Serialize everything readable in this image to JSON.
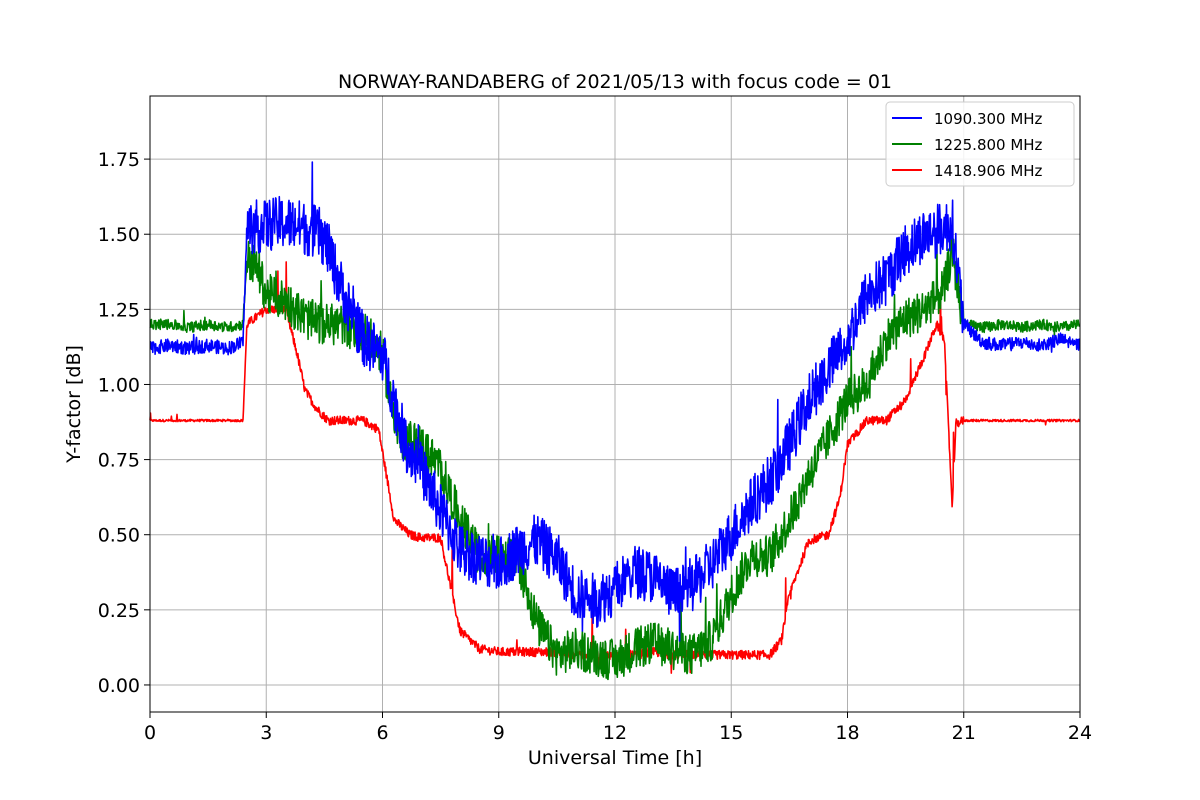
{
  "chart_data": {
    "type": "line",
    "title": "NORWAY-RANDABERG of 2021/05/13 with focus code = 01",
    "xlabel": "Universal Time [h]",
    "ylabel": "Y-factor [dB]",
    "xlim": [
      0,
      24
    ],
    "ylim": [
      -0.09,
      1.96
    ],
    "xticks": [
      0,
      3,
      6,
      9,
      12,
      15,
      18,
      21,
      24
    ],
    "yticks": [
      0.0,
      0.25,
      0.5,
      0.75,
      1.0,
      1.25,
      1.5,
      1.75
    ],
    "ytick_labels": [
      "0.00",
      "0.25",
      "0.50",
      "0.75",
      "1.00",
      "1.25",
      "1.50",
      "1.75"
    ],
    "grid": true,
    "legend_position": "top-right",
    "series": [
      {
        "name": "1090.300 MHz",
        "color": "#0000ff",
        "x": [
          0,
          0.5,
          1.0,
          1.5,
          2.0,
          2.4,
          2.5,
          3.0,
          3.5,
          4.0,
          4.4,
          4.6,
          5.0,
          5.5,
          6.0,
          6.3,
          6.6,
          7.0,
          7.5,
          8.0,
          8.5,
          9.0,
          9.5,
          10.0,
          10.5,
          11.0,
          11.5,
          12.0,
          12.5,
          13.0,
          13.5,
          14.0,
          14.5,
          15.0,
          15.5,
          16.0,
          16.5,
          17.0,
          17.5,
          18.0,
          18.5,
          19.0,
          19.5,
          20.0,
          20.5,
          20.7,
          21.0,
          21.5,
          22.0,
          22.5,
          23.0,
          23.5,
          24.0
        ],
        "y": [
          1.12,
          1.13,
          1.12,
          1.13,
          1.12,
          1.14,
          1.52,
          1.53,
          1.54,
          1.52,
          1.5,
          1.45,
          1.3,
          1.15,
          1.1,
          0.95,
          0.8,
          0.72,
          0.58,
          0.45,
          0.42,
          0.4,
          0.45,
          0.48,
          0.42,
          0.3,
          0.28,
          0.32,
          0.38,
          0.36,
          0.3,
          0.33,
          0.4,
          0.5,
          0.6,
          0.68,
          0.8,
          0.95,
          1.05,
          1.15,
          1.3,
          1.35,
          1.45,
          1.5,
          1.52,
          1.54,
          1.2,
          1.14,
          1.13,
          1.14,
          1.13,
          1.15,
          1.13
        ]
      },
      {
        "name": "1225.800 MHz",
        "color": "#008000",
        "x": [
          0,
          0.5,
          1.0,
          1.5,
          2.0,
          2.4,
          2.5,
          2.8,
          3.0,
          3.5,
          4.0,
          4.5,
          5.0,
          5.5,
          6.0,
          6.2,
          6.5,
          7.0,
          7.5,
          8.0,
          8.5,
          9.0,
          9.5,
          10.0,
          10.5,
          11.0,
          11.5,
          12.0,
          12.5,
          13.0,
          13.5,
          14.0,
          14.5,
          15.0,
          15.5,
          16.0,
          16.5,
          17.0,
          17.5,
          18.0,
          18.5,
          19.0,
          19.5,
          20.0,
          20.5,
          20.7,
          21.0,
          21.5,
          22.0,
          22.5,
          23.0,
          23.5,
          24.0
        ],
        "y": [
          1.2,
          1.2,
          1.19,
          1.2,
          1.19,
          1.2,
          1.42,
          1.38,
          1.3,
          1.28,
          1.22,
          1.2,
          1.2,
          1.18,
          1.1,
          0.95,
          0.82,
          0.8,
          0.72,
          0.55,
          0.43,
          0.43,
          0.42,
          0.2,
          0.1,
          0.12,
          0.1,
          0.08,
          0.12,
          0.14,
          0.12,
          0.1,
          0.15,
          0.3,
          0.43,
          0.43,
          0.55,
          0.7,
          0.82,
          0.95,
          1.0,
          1.15,
          1.22,
          1.25,
          1.32,
          1.45,
          1.2,
          1.19,
          1.2,
          1.19,
          1.2,
          1.19,
          1.2
        ]
      },
      {
        "name": "1418.906 MHz",
        "color": "#ff0000",
        "x": [
          0,
          0.5,
          1.0,
          1.5,
          2.0,
          2.4,
          2.5,
          3.0,
          3.5,
          3.8,
          4.0,
          4.3,
          4.6,
          5.0,
          5.5,
          5.9,
          6.1,
          6.3,
          6.7,
          7.0,
          7.5,
          7.8,
          8.0,
          8.5,
          9.0,
          9.5,
          10.0,
          10.5,
          11.0,
          11.5,
          12.0,
          12.5,
          13.0,
          13.5,
          14.0,
          14.5,
          15.0,
          15.5,
          16.0,
          16.3,
          16.5,
          17.0,
          17.5,
          17.8,
          18.0,
          18.5,
          19.0,
          19.5,
          20.0,
          20.3,
          20.5,
          20.7,
          20.8,
          21.0,
          21.5,
          22.0,
          22.5,
          23.0,
          23.5,
          24.0
        ],
        "y": [
          0.88,
          0.88,
          0.88,
          0.88,
          0.88,
          0.88,
          1.2,
          1.25,
          1.25,
          1.1,
          0.98,
          0.92,
          0.88,
          0.88,
          0.88,
          0.85,
          0.7,
          0.55,
          0.5,
          0.49,
          0.49,
          0.3,
          0.18,
          0.12,
          0.11,
          0.11,
          0.11,
          0.11,
          0.1,
          0.1,
          0.1,
          0.1,
          0.11,
          0.1,
          0.1,
          0.1,
          0.1,
          0.1,
          0.1,
          0.15,
          0.3,
          0.48,
          0.5,
          0.62,
          0.8,
          0.88,
          0.88,
          0.95,
          1.1,
          1.2,
          1.15,
          0.6,
          0.87,
          0.88,
          0.88,
          0.88,
          0.88,
          0.88,
          0.88,
          0.88
        ]
      }
    ]
  }
}
